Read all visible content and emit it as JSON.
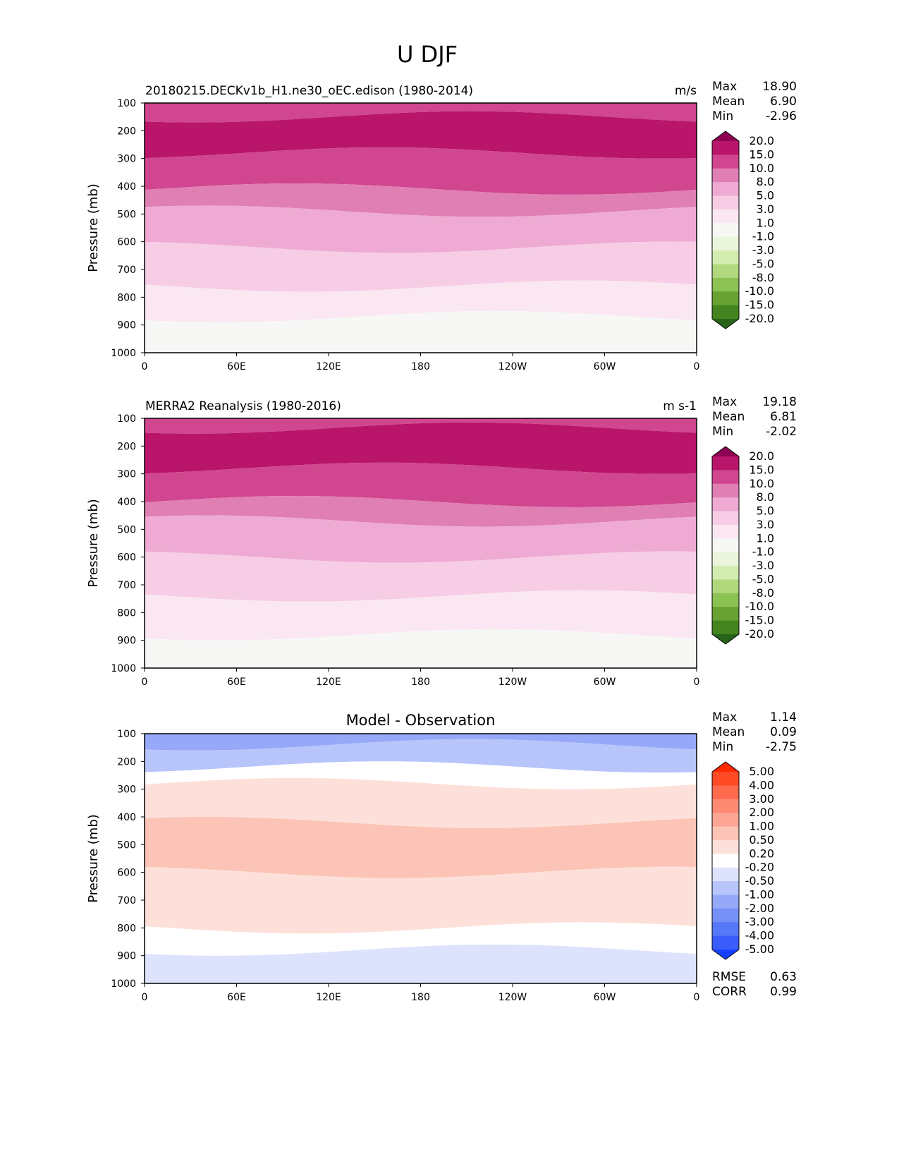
{
  "figure_title": "U DJF",
  "chart_data": [
    {
      "type": "heatmap",
      "subtype": "filled-contour",
      "title_left": "20180215.DECKv1b_H1.ne30_oEC.edison (1980-2014)",
      "title_center": "",
      "units": "m/s",
      "ylabel": "Pressure (mb)",
      "xlabel": "",
      "x_ticks": [
        "0",
        "60E",
        "120E",
        "180",
        "120W",
        "60W",
        "0"
      ],
      "y_ticks": [
        "100",
        "200",
        "300",
        "400",
        "500",
        "600",
        "700",
        "800",
        "900",
        "1000"
      ],
      "ylim": [
        100,
        1000
      ],
      "xlim": [
        0,
        360
      ],
      "stats": [
        {
          "label": "Max",
          "value": "18.90"
        },
        {
          "label": "Mean",
          "value": "6.90"
        },
        {
          "label": "Min",
          "value": "-2.96"
        }
      ],
      "colorbar": {
        "levels": [
          "20.0",
          "15.0",
          "10.0",
          "8.0",
          "5.0",
          "3.0",
          "1.0",
          "-1.0",
          "-3.0",
          "-5.0",
          "-8.0",
          "-10.0",
          "-15.0",
          "-20.0"
        ],
        "colors": [
          "#8e0152",
          "#b8156b",
          "#d0468f",
          "#e07fb4",
          "#eeaad3",
          "#f6cde5",
          "#fae7f2",
          "#f7f7f5",
          "#eaf5dc",
          "#d2ecb0",
          "#b2d87e",
          "#8cc153",
          "#67a233",
          "#44841f",
          "#276419"
        ]
      },
      "bands_by_pressure": [
        {
          "from": 100,
          "to": 150,
          "color_index": 2
        },
        {
          "from": 150,
          "to": 280,
          "color_index": 1
        },
        {
          "from": 280,
          "to": 410,
          "color_index": 2
        },
        {
          "from": 410,
          "to": 490,
          "color_index": 3
        },
        {
          "from": 490,
          "to": 620,
          "color_index": 4
        },
        {
          "from": 620,
          "to": 760,
          "color_index": 5
        },
        {
          "from": 760,
          "to": 870,
          "color_index": 6
        },
        {
          "from": 870,
          "to": 1000,
          "color_index": 7
        }
      ]
    },
    {
      "type": "heatmap",
      "subtype": "filled-contour",
      "title_left": "MERRA2 Reanalysis (1980-2016)",
      "title_center": "",
      "units": "m s-1",
      "ylabel": "Pressure (mb)",
      "xlabel": "",
      "x_ticks": [
        "0",
        "60E",
        "120E",
        "180",
        "120W",
        "60W",
        "0"
      ],
      "y_ticks": [
        "100",
        "200",
        "300",
        "400",
        "500",
        "600",
        "700",
        "800",
        "900",
        "1000"
      ],
      "ylim": [
        100,
        1000
      ],
      "xlim": [
        0,
        360
      ],
      "stats": [
        {
          "label": "Max",
          "value": "19.18"
        },
        {
          "label": "Mean",
          "value": "6.81"
        },
        {
          "label": "Min",
          "value": "-2.02"
        }
      ],
      "colorbar": {
        "levels": [
          "20.0",
          "15.0",
          "10.0",
          "8.0",
          "5.0",
          "3.0",
          "1.0",
          "-1.0",
          "-3.0",
          "-5.0",
          "-8.0",
          "-10.0",
          "-15.0",
          "-20.0"
        ],
        "colors": [
          "#8e0152",
          "#b8156b",
          "#d0468f",
          "#e07fb4",
          "#eeaad3",
          "#f6cde5",
          "#fae7f2",
          "#f7f7f5",
          "#eaf5dc",
          "#d2ecb0",
          "#b2d87e",
          "#8cc153",
          "#67a233",
          "#44841f",
          "#276419"
        ]
      },
      "bands_by_pressure": [
        {
          "from": 100,
          "to": 135,
          "color_index": 2
        },
        {
          "from": 135,
          "to": 280,
          "color_index": 1
        },
        {
          "from": 280,
          "to": 400,
          "color_index": 2
        },
        {
          "from": 400,
          "to": 470,
          "color_index": 3
        },
        {
          "from": 470,
          "to": 600,
          "color_index": 4
        },
        {
          "from": 600,
          "to": 740,
          "color_index": 5
        },
        {
          "from": 740,
          "to": 880,
          "color_index": 6
        },
        {
          "from": 880,
          "to": 1000,
          "color_index": 7
        }
      ]
    },
    {
      "type": "heatmap",
      "subtype": "filled-contour",
      "title_left": "",
      "title_center": "Model - Observation",
      "units": "",
      "ylabel": "Pressure (mb)",
      "xlabel": "",
      "x_ticks": [
        "0",
        "60E",
        "120E",
        "180",
        "120W",
        "60W",
        "0"
      ],
      "y_ticks": [
        "100",
        "200",
        "300",
        "400",
        "500",
        "600",
        "700",
        "800",
        "900",
        "1000"
      ],
      "ylim": [
        100,
        1000
      ],
      "xlim": [
        0,
        360
      ],
      "stats": [
        {
          "label": "Max",
          "value": "1.14"
        },
        {
          "label": "Mean",
          "value": "0.09"
        },
        {
          "label": "Min",
          "value": "-2.75"
        }
      ],
      "extra_stats": [
        {
          "label": "RMSE",
          "value": "0.63"
        },
        {
          "label": "CORR",
          "value": "0.99"
        }
      ],
      "colorbar": {
        "levels": [
          "5.00",
          "4.00",
          "3.00",
          "2.00",
          "1.00",
          "0.50",
          "0.20",
          "-0.20",
          "-0.50",
          "-1.00",
          "-2.00",
          "-3.00",
          "-4.00",
          "-5.00"
        ],
        "colors": [
          "#ff2a00",
          "#ff4a26",
          "#ff6a4d",
          "#ff8a73",
          "#fca594",
          "#fbc4b6",
          "#fde0d9",
          "#ffffff",
          "#dde3fc",
          "#b7c5fb",
          "#96a9f8",
          "#7590f7",
          "#5677f8",
          "#3a5cfb",
          "#1640ff"
        ]
      },
      "bands_by_pressure": [
        {
          "from": 100,
          "to": 140,
          "color_index": 10
        },
        {
          "from": 140,
          "to": 220,
          "color_index": 9
        },
        {
          "from": 220,
          "to": 280,
          "color_index": 7
        },
        {
          "from": 280,
          "to": 420,
          "color_index": 6
        },
        {
          "from": 420,
          "to": 600,
          "color_index": 5
        },
        {
          "from": 600,
          "to": 800,
          "color_index": 6
        },
        {
          "from": 800,
          "to": 880,
          "color_index": 7
        },
        {
          "from": 880,
          "to": 1000,
          "color_index": 8
        }
      ]
    }
  ]
}
